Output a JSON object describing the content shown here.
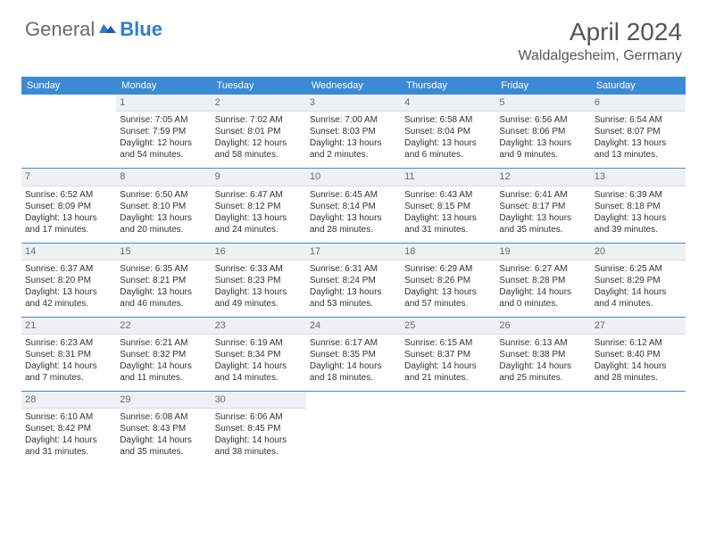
{
  "brand": {
    "text1": "General",
    "text2": "Blue"
  },
  "title": "April 2024",
  "location": "Waldalgesheim, Germany",
  "colors": {
    "header_bar": "#3b8bd4",
    "header_text": "#ffffff",
    "daynum_bg": "#eef1f3",
    "daynum_text": "#6a6a6a",
    "body_text": "#333333",
    "rule": "#3b8bd4",
    "logo_gray": "#6b6b6b",
    "logo_blue": "#2e7cd6",
    "title_color": "#555555"
  },
  "calendar": {
    "type": "table",
    "daynames": [
      "Sunday",
      "Monday",
      "Tuesday",
      "Wednesday",
      "Thursday",
      "Friday",
      "Saturday"
    ],
    "weeks": [
      [
        null,
        {
          "n": "1",
          "sr": "Sunrise: 7:05 AM",
          "ss": "Sunset: 7:59 PM",
          "d1": "Daylight: 12 hours",
          "d2": "and 54 minutes."
        },
        {
          "n": "2",
          "sr": "Sunrise: 7:02 AM",
          "ss": "Sunset: 8:01 PM",
          "d1": "Daylight: 12 hours",
          "d2": "and 58 minutes."
        },
        {
          "n": "3",
          "sr": "Sunrise: 7:00 AM",
          "ss": "Sunset: 8:03 PM",
          "d1": "Daylight: 13 hours",
          "d2": "and 2 minutes."
        },
        {
          "n": "4",
          "sr": "Sunrise: 6:58 AM",
          "ss": "Sunset: 8:04 PM",
          "d1": "Daylight: 13 hours",
          "d2": "and 6 minutes."
        },
        {
          "n": "5",
          "sr": "Sunrise: 6:56 AM",
          "ss": "Sunset: 8:06 PM",
          "d1": "Daylight: 13 hours",
          "d2": "and 9 minutes."
        },
        {
          "n": "6",
          "sr": "Sunrise: 6:54 AM",
          "ss": "Sunset: 8:07 PM",
          "d1": "Daylight: 13 hours",
          "d2": "and 13 minutes."
        }
      ],
      [
        {
          "n": "7",
          "sr": "Sunrise: 6:52 AM",
          "ss": "Sunset: 8:09 PM",
          "d1": "Daylight: 13 hours",
          "d2": "and 17 minutes."
        },
        {
          "n": "8",
          "sr": "Sunrise: 6:50 AM",
          "ss": "Sunset: 8:10 PM",
          "d1": "Daylight: 13 hours",
          "d2": "and 20 minutes."
        },
        {
          "n": "9",
          "sr": "Sunrise: 6:47 AM",
          "ss": "Sunset: 8:12 PM",
          "d1": "Daylight: 13 hours",
          "d2": "and 24 minutes."
        },
        {
          "n": "10",
          "sr": "Sunrise: 6:45 AM",
          "ss": "Sunset: 8:14 PM",
          "d1": "Daylight: 13 hours",
          "d2": "and 28 minutes."
        },
        {
          "n": "11",
          "sr": "Sunrise: 6:43 AM",
          "ss": "Sunset: 8:15 PM",
          "d1": "Daylight: 13 hours",
          "d2": "and 31 minutes."
        },
        {
          "n": "12",
          "sr": "Sunrise: 6:41 AM",
          "ss": "Sunset: 8:17 PM",
          "d1": "Daylight: 13 hours",
          "d2": "and 35 minutes."
        },
        {
          "n": "13",
          "sr": "Sunrise: 6:39 AM",
          "ss": "Sunset: 8:18 PM",
          "d1": "Daylight: 13 hours",
          "d2": "and 39 minutes."
        }
      ],
      [
        {
          "n": "14",
          "sr": "Sunrise: 6:37 AM",
          "ss": "Sunset: 8:20 PM",
          "d1": "Daylight: 13 hours",
          "d2": "and 42 minutes."
        },
        {
          "n": "15",
          "sr": "Sunrise: 6:35 AM",
          "ss": "Sunset: 8:21 PM",
          "d1": "Daylight: 13 hours",
          "d2": "and 46 minutes."
        },
        {
          "n": "16",
          "sr": "Sunrise: 6:33 AM",
          "ss": "Sunset: 8:23 PM",
          "d1": "Daylight: 13 hours",
          "d2": "and 49 minutes."
        },
        {
          "n": "17",
          "sr": "Sunrise: 6:31 AM",
          "ss": "Sunset: 8:24 PM",
          "d1": "Daylight: 13 hours",
          "d2": "and 53 minutes."
        },
        {
          "n": "18",
          "sr": "Sunrise: 6:29 AM",
          "ss": "Sunset: 8:26 PM",
          "d1": "Daylight: 13 hours",
          "d2": "and 57 minutes."
        },
        {
          "n": "19",
          "sr": "Sunrise: 6:27 AM",
          "ss": "Sunset: 8:28 PM",
          "d1": "Daylight: 14 hours",
          "d2": "and 0 minutes."
        },
        {
          "n": "20",
          "sr": "Sunrise: 6:25 AM",
          "ss": "Sunset: 8:29 PM",
          "d1": "Daylight: 14 hours",
          "d2": "and 4 minutes."
        }
      ],
      [
        {
          "n": "21",
          "sr": "Sunrise: 6:23 AM",
          "ss": "Sunset: 8:31 PM",
          "d1": "Daylight: 14 hours",
          "d2": "and 7 minutes."
        },
        {
          "n": "22",
          "sr": "Sunrise: 6:21 AM",
          "ss": "Sunset: 8:32 PM",
          "d1": "Daylight: 14 hours",
          "d2": "and 11 minutes."
        },
        {
          "n": "23",
          "sr": "Sunrise: 6:19 AM",
          "ss": "Sunset: 8:34 PM",
          "d1": "Daylight: 14 hours",
          "d2": "and 14 minutes."
        },
        {
          "n": "24",
          "sr": "Sunrise: 6:17 AM",
          "ss": "Sunset: 8:35 PM",
          "d1": "Daylight: 14 hours",
          "d2": "and 18 minutes."
        },
        {
          "n": "25",
          "sr": "Sunrise: 6:15 AM",
          "ss": "Sunset: 8:37 PM",
          "d1": "Daylight: 14 hours",
          "d2": "and 21 minutes."
        },
        {
          "n": "26",
          "sr": "Sunrise: 6:13 AM",
          "ss": "Sunset: 8:38 PM",
          "d1": "Daylight: 14 hours",
          "d2": "and 25 minutes."
        },
        {
          "n": "27",
          "sr": "Sunrise: 6:12 AM",
          "ss": "Sunset: 8:40 PM",
          "d1": "Daylight: 14 hours",
          "d2": "and 28 minutes."
        }
      ],
      [
        {
          "n": "28",
          "sr": "Sunrise: 6:10 AM",
          "ss": "Sunset: 8:42 PM",
          "d1": "Daylight: 14 hours",
          "d2": "and 31 minutes."
        },
        {
          "n": "29",
          "sr": "Sunrise: 6:08 AM",
          "ss": "Sunset: 8:43 PM",
          "d1": "Daylight: 14 hours",
          "d2": "and 35 minutes."
        },
        {
          "n": "30",
          "sr": "Sunrise: 6:06 AM",
          "ss": "Sunset: 8:45 PM",
          "d1": "Daylight: 14 hours",
          "d2": "and 38 minutes."
        },
        null,
        null,
        null,
        null
      ]
    ]
  }
}
